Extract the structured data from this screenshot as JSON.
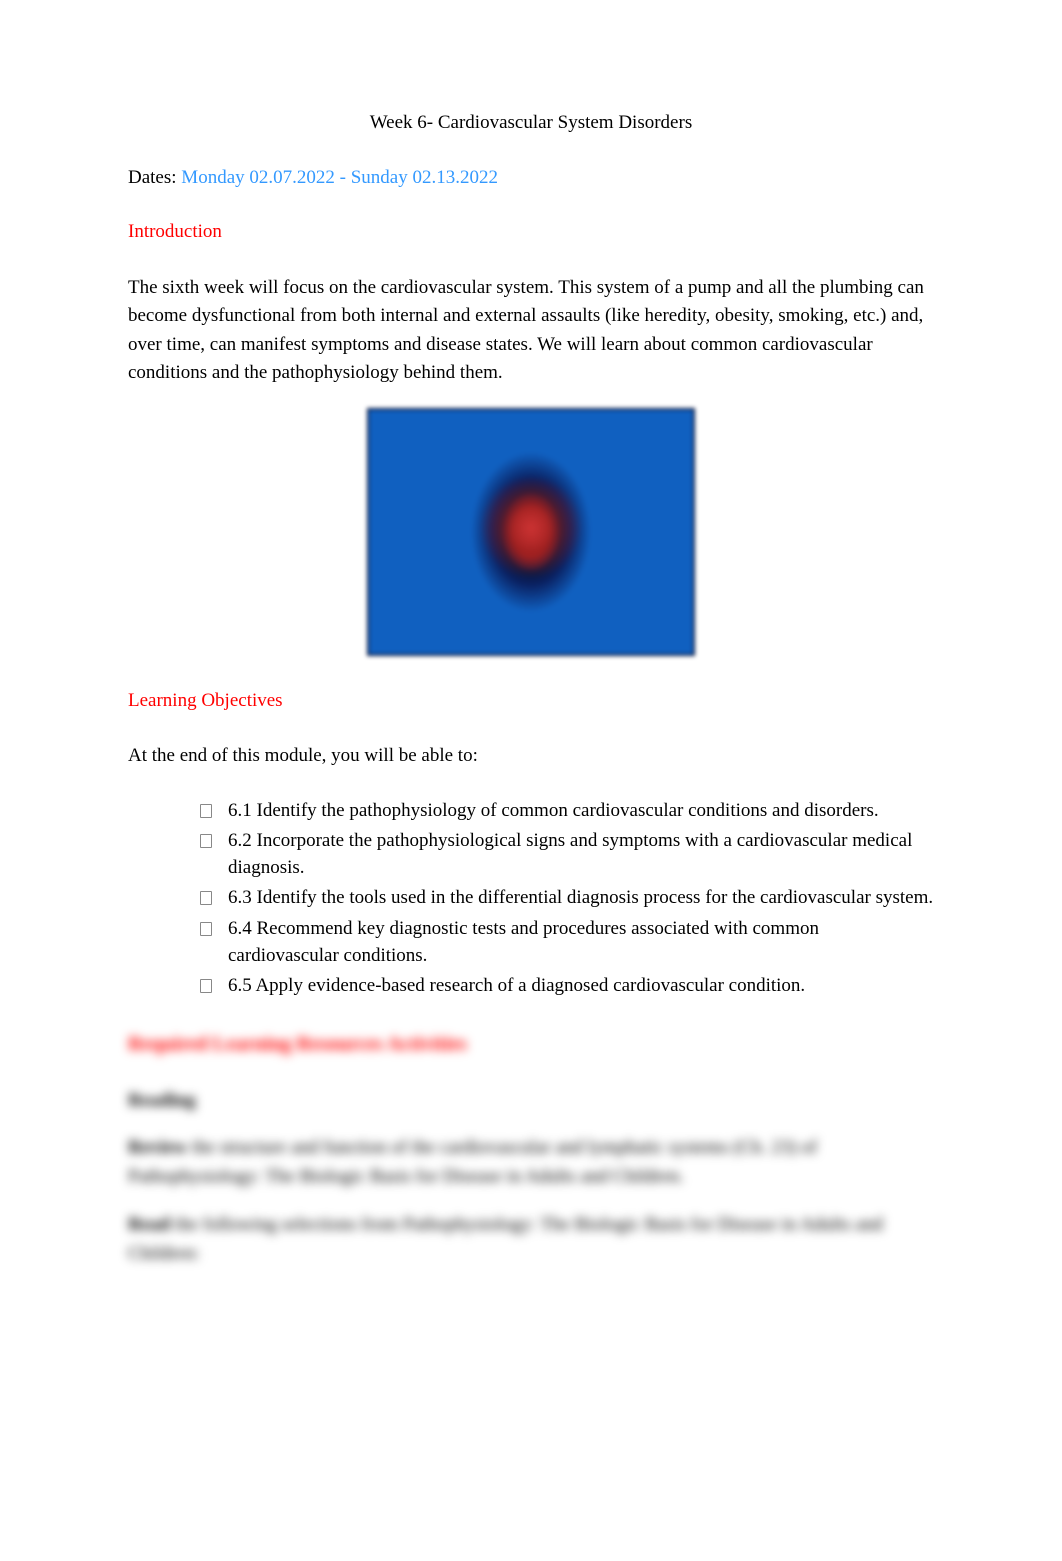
{
  "title": "Week 6- Cardiovascular System Disorders",
  "dates": {
    "label": "Dates: ",
    "value": "Monday 02.07.2022 - Sunday 02.13.2022"
  },
  "intro": {
    "heading": "Introduction",
    "paragraph": "The sixth week will focus on the cardiovascular system. This system of a pump and all the plumbing can become dysfunctional from both internal and external assaults (like heredity, obesity, smoking, etc.) and, over time, can manifest symptoms and disease states. We will learn about common cardiovascular conditions and the pathophysiology behind them."
  },
  "image": {
    "alt": "Human heart in chest cavity illustration"
  },
  "objectives": {
    "heading": "Learning Objectives",
    "intro": "At the end of this module, you will be able to:",
    "items": [
      "6.1 Identify the pathophysiology of common cardiovascular conditions and disorders.",
      "6.2 Incorporate the pathophysiological signs and symptoms with a cardiovascular medical diagnosis.",
      "6.3 Identify the tools used in the differential diagnosis process for the cardiovascular system.",
      "6.4 Recommend key diagnostic tests and procedures associated with common cardiovascular conditions.",
      "6.5 Apply evidence-based research of a diagnosed cardiovascular condition."
    ]
  },
  "blurred": {
    "heading": "Required Learning Resources Activities",
    "subheading": "Reading",
    "para1_strong": "Review",
    "para1_rest": " the structure and function of the cardiovascular and lymphatic systems (Ch. 23) of Pathophysiology: The Biologic Basis for Disease in Adults and Children.",
    "para2_strong": "Read",
    "para2_rest": " the following selections from Pathophysiology: The Biologic Basis for Disease in Adults and Children:"
  }
}
